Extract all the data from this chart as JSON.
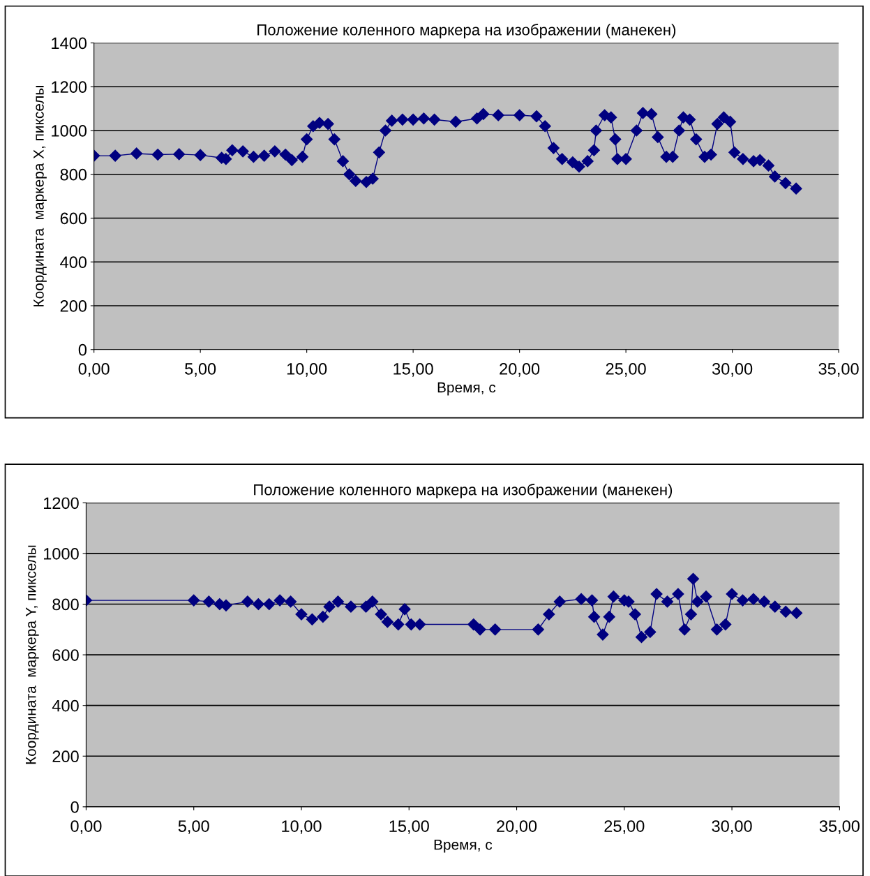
{
  "chart_data": [
    {
      "type": "line",
      "title": "Положение коленного маркера на изображении (манекен)",
      "xlabel": "Время, с",
      "ylabel": "Координата  маркера X, пикселы",
      "marker": "diamond",
      "line_style": "solid",
      "grid": "y",
      "legend": false,
      "xlim": [
        0,
        35
      ],
      "xticks": [
        {
          "value": 0,
          "label": "0,00"
        },
        {
          "value": 5,
          "label": "5,00"
        },
        {
          "value": 10,
          "label": "10,00"
        },
        {
          "value": 15,
          "label": "15,00"
        },
        {
          "value": 20,
          "label": "20,00"
        },
        {
          "value": 25,
          "label": "25,00"
        },
        {
          "value": 30,
          "label": "30,00"
        },
        {
          "value": 35,
          "label": "35,00"
        }
      ],
      "ylim": [
        0,
        1400
      ],
      "yticks": [
        0,
        200,
        400,
        600,
        800,
        1000,
        1200,
        1400
      ],
      "series": [
        {
          "color": "#000080",
          "x": [
            0,
            1,
            2,
            3,
            4,
            5,
            6,
            6.2,
            6.5,
            7,
            7.5,
            8,
            8.5,
            9,
            9.3,
            9.8,
            10,
            10.3,
            10.6,
            11,
            11.3,
            11.7,
            12,
            12.3,
            12.8,
            13.1,
            13.4,
            13.7,
            14,
            14.5,
            15,
            15.5,
            16,
            17,
            18,
            18.3,
            19,
            20,
            20.8,
            21.2,
            21.6,
            22,
            22.5,
            22.8,
            23.2,
            23.5,
            23.6,
            24,
            24.3,
            24.5,
            24.6,
            25,
            25.5,
            25.8,
            26.2,
            26.5,
            26.9,
            27.2,
            27.5,
            27.7,
            28,
            28.3,
            28.7,
            29,
            29.3,
            29.6,
            29.9,
            30.1,
            30.5,
            31,
            31.3,
            31.7,
            32,
            32.5,
            33
          ],
          "values": [
            885,
            885,
            895,
            890,
            892,
            888,
            875,
            870,
            910,
            905,
            880,
            885,
            905,
            890,
            865,
            880,
            960,
            1020,
            1035,
            1030,
            960,
            860,
            800,
            770,
            765,
            780,
            900,
            1000,
            1045,
            1050,
            1050,
            1055,
            1050,
            1040,
            1055,
            1075,
            1070,
            1070,
            1065,
            1020,
            920,
            870,
            855,
            835,
            860,
            910,
            1000,
            1070,
            1060,
            960,
            870,
            870,
            1000,
            1080,
            1075,
            970,
            880,
            880,
            1000,
            1060,
            1050,
            960,
            880,
            890,
            1030,
            1060,
            1040,
            900,
            870,
            860,
            865,
            840,
            790,
            760,
            735
          ]
        }
      ]
    },
    {
      "type": "line",
      "title": "Положение коленного маркера на изображении (манекен)",
      "xlabel": "Время, с",
      "ylabel": "Координата  маркера Y, пикселы",
      "marker": "diamond",
      "line_style": "solid",
      "grid": "y",
      "legend": false,
      "xlim": [
        0,
        35
      ],
      "xticks": [
        {
          "value": 0,
          "label": "0,00"
        },
        {
          "value": 5,
          "label": "5,00"
        },
        {
          "value": 10,
          "label": "10,00"
        },
        {
          "value": 15,
          "label": "15,00"
        },
        {
          "value": 20,
          "label": "20,00"
        },
        {
          "value": 25,
          "label": "25,00"
        },
        {
          "value": 30,
          "label": "30,00"
        },
        {
          "value": 35,
          "label": "35,00"
        }
      ],
      "ylim": [
        0,
        1200
      ],
      "yticks": [
        0,
        200,
        400,
        600,
        800,
        1000,
        1200
      ],
      "series": [
        {
          "color": "#000080",
          "x": [
            0,
            5,
            5.7,
            6.2,
            6.5,
            7.5,
            8,
            8.5,
            9,
            9.5,
            10,
            10.5,
            11,
            11.3,
            11.7,
            12.3,
            13,
            13.3,
            13.7,
            14,
            14.5,
            14.8,
            15.1,
            15.5,
            18,
            18.3,
            19,
            21,
            21.5,
            22,
            23,
            23.5,
            23.6,
            24,
            24.3,
            24.5,
            25,
            25.2,
            25.5,
            25.8,
            26.2,
            26.5,
            27,
            27.5,
            27.8,
            28.1,
            28.2,
            28.4,
            28.8,
            29.3,
            29.7,
            30,
            30.5,
            31,
            31.5,
            32,
            32.5,
            33
          ],
          "values": [
            815,
            815,
            810,
            800,
            795,
            810,
            800,
            800,
            815,
            810,
            760,
            740,
            750,
            790,
            810,
            790,
            790,
            810,
            760,
            730,
            720,
            780,
            720,
            720,
            720,
            700,
            700,
            700,
            760,
            810,
            820,
            815,
            750,
            680,
            750,
            830,
            815,
            810,
            760,
            670,
            690,
            840,
            810,
            840,
            700,
            760,
            900,
            810,
            830,
            700,
            720,
            840,
            815,
            820,
            810,
            790,
            770,
            765
          ]
        }
      ]
    }
  ]
}
